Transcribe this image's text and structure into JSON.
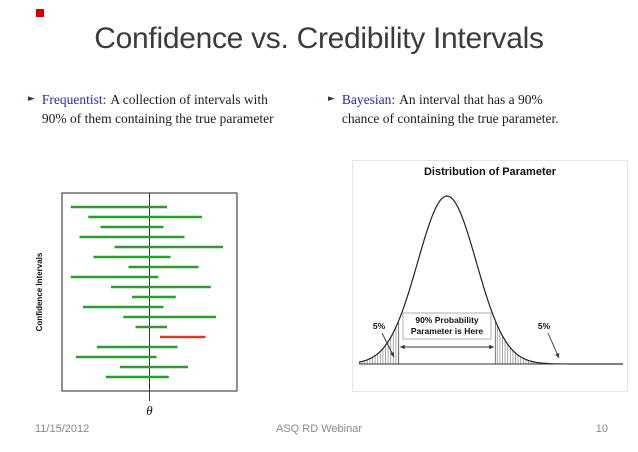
{
  "slide": {
    "title": "Confidence vs. Credibility Intervals",
    "bullet_marker": "►",
    "bullets": [
      {
        "term": "Frequentist:",
        "text": "A collection of intervals with 90% of them containing the true parameter"
      },
      {
        "term": "Bayesian:",
        "text": "An interval that has a 90% chance of containing the true parameter."
      }
    ],
    "footer": {
      "date": "11/15/2012",
      "center": "ASQ RD Webinar",
      "page": "10"
    }
  },
  "colors": {
    "accent_red": "#cc0000",
    "term_blue": "#2626bb",
    "interval_green": "#2e9b2e",
    "interval_red": "#d43a2f",
    "title_gray": "#3b3b3b",
    "footer_gray": "#8a8a8a"
  },
  "chart_data": [
    {
      "type": "interval",
      "description": "Frequentist confidence intervals crossing the vertical true-parameter line; one interval (red) misses the true value",
      "ylabel": "Confidence Intervals",
      "x_marker_label": "θ",
      "true_parameter": 0,
      "xlim": [
        -1,
        1
      ],
      "intervals": [
        {
          "low": -0.9,
          "high": 0.2,
          "contains_true": true
        },
        {
          "low": -0.7,
          "high": 0.6,
          "contains_true": true
        },
        {
          "low": -0.56,
          "high": 0.16,
          "contains_true": true
        },
        {
          "low": -0.8,
          "high": 0.4,
          "contains_true": true
        },
        {
          "low": -0.4,
          "high": 0.84,
          "contains_true": true
        },
        {
          "low": -0.64,
          "high": 0.24,
          "contains_true": true
        },
        {
          "low": -0.24,
          "high": 0.56,
          "contains_true": true
        },
        {
          "low": -0.9,
          "high": 0.1,
          "contains_true": true
        },
        {
          "low": -0.44,
          "high": 0.7,
          "contains_true": true
        },
        {
          "low": -0.2,
          "high": 0.3,
          "contains_true": true
        },
        {
          "low": -0.76,
          "high": 0.16,
          "contains_true": true
        },
        {
          "low": -0.3,
          "high": 0.76,
          "contains_true": true
        },
        {
          "low": -0.16,
          "high": 0.2,
          "contains_true": true
        },
        {
          "low": 0.12,
          "high": 0.64,
          "contains_true": false
        },
        {
          "low": -0.6,
          "high": 0.32,
          "contains_true": true
        },
        {
          "low": -0.84,
          "high": 0.08,
          "contains_true": true
        },
        {
          "low": -0.34,
          "high": 0.44,
          "contains_true": true
        },
        {
          "low": -0.5,
          "high": 0.22,
          "contains_true": true
        }
      ]
    },
    {
      "type": "area",
      "title": "Distribution of Parameter",
      "distribution": "normal(0,1)",
      "x_range": [
        -3,
        6
      ],
      "cutoffs": [
        -1.645,
        1.645
      ],
      "left_tail_label": "5%",
      "right_tail_label": "5%",
      "center_label": [
        "90% Probability",
        "Parameter is Here"
      ],
      "shading": "tails beyond cutoffs hatched"
    }
  ]
}
